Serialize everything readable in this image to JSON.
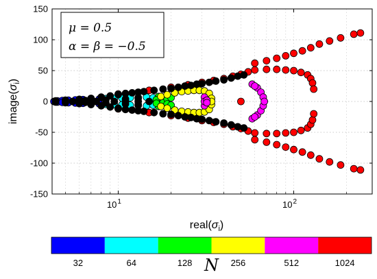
{
  "chart_data": {
    "type": "scatter",
    "title": "",
    "xlabel": "real(σ_i)",
    "ylabel": "image(σ_i)",
    "xscale": "log",
    "xlim": [
      4.2,
      280
    ],
    "ylim": [
      -150,
      150
    ],
    "x_ticks": [
      {
        "value": 10,
        "label": "10",
        "sup": "1"
      },
      {
        "value": 100,
        "label": "10",
        "sup": "2"
      }
    ],
    "y_ticks": [
      -150,
      -100,
      -50,
      0,
      50,
      100,
      150
    ],
    "grid": true,
    "legend_box": {
      "line1": "μ = 0.5",
      "line2": "α = β = −0.5",
      "placement": "top-left"
    },
    "colorbar": {
      "title": "N",
      "entries": [
        {
          "label": "32",
          "color": "#0000ff"
        },
        {
          "label": "64",
          "color": "#00ffff"
        },
        {
          "label": "128",
          "color": "#00ff00"
        },
        {
          "label": "256",
          "color": "#ffff00"
        },
        {
          "label": "512",
          "color": "#ff00ff"
        },
        {
          "label": "1024",
          "color": "#ff0000"
        }
      ]
    },
    "series": [
      {
        "name": "32",
        "color": "#0000ff",
        "points": [
          [
            4.3,
            0
          ],
          [
            4.5,
            1
          ],
          [
            4.5,
            -1
          ],
          [
            4.8,
            1.5
          ],
          [
            4.8,
            -1.5
          ],
          [
            5.2,
            2
          ],
          [
            5.2,
            -2
          ],
          [
            5.7,
            2.5
          ],
          [
            5.7,
            -2.5
          ],
          [
            6.3,
            3
          ],
          [
            6.3,
            -3
          ],
          [
            7.0,
            3.5
          ],
          [
            7.0,
            -3.5
          ],
          [
            7.8,
            4
          ],
          [
            7.8,
            -4
          ]
        ]
      },
      {
        "name": "64",
        "color": "#00ffff",
        "points": [
          [
            8.5,
            4.5
          ],
          [
            8.5,
            -4.5
          ],
          [
            9.5,
            5
          ],
          [
            9.5,
            -5
          ],
          [
            10.5,
            5.5
          ],
          [
            10.5,
            -5.5
          ],
          [
            11.7,
            6
          ],
          [
            11.7,
            -6
          ],
          [
            13.0,
            6.5
          ],
          [
            13.0,
            -6.5
          ],
          [
            14.5,
            7
          ],
          [
            14.5,
            -7
          ],
          [
            15.8,
            6
          ],
          [
            15.8,
            -6
          ]
        ]
      },
      {
        "name": "128",
        "color": "#00ff00",
        "points": [
          [
            16.5,
            0
          ],
          [
            17.0,
            8
          ],
          [
            17.0,
            -8
          ],
          [
            18.0,
            2
          ],
          [
            18.0,
            -2
          ],
          [
            19.0,
            4
          ],
          [
            19.0,
            -4
          ],
          [
            20.0,
            6
          ],
          [
            20.0,
            -6
          ],
          [
            16.5,
            3
          ],
          [
            16.5,
            -3
          ]
        ]
      },
      {
        "name": "256",
        "color": "#ffff00",
        "points": [
          [
            17.5,
            8
          ],
          [
            17.5,
            -8
          ],
          [
            19,
            11
          ],
          [
            19,
            -11
          ],
          [
            21,
            14
          ],
          [
            21,
            -14
          ],
          [
            23,
            16
          ],
          [
            23,
            -16
          ],
          [
            25,
            17
          ],
          [
            25,
            -17
          ],
          [
            27,
            18
          ],
          [
            27,
            -18
          ],
          [
            29,
            18
          ],
          [
            29,
            -18
          ],
          [
            31,
            17
          ],
          [
            31,
            -17
          ],
          [
            33,
            13
          ],
          [
            33,
            -13
          ],
          [
            34,
            5
          ],
          [
            34,
            -5
          ],
          [
            34,
            0
          ]
        ]
      },
      {
        "name": "512",
        "color": "#ff00ff",
        "points": [
          [
            31,
            7
          ],
          [
            31,
            -7
          ],
          [
            31,
            0
          ],
          [
            32,
            2
          ],
          [
            32,
            -2
          ],
          [
            58,
            28
          ],
          [
            58,
            -28
          ],
          [
            62,
            22
          ],
          [
            62,
            -22
          ],
          [
            65,
            15
          ],
          [
            65,
            -15
          ],
          [
            67,
            7
          ],
          [
            67,
            -7
          ],
          [
            68,
            0
          ],
          [
            60,
            25
          ],
          [
            60,
            -25
          ]
        ]
      },
      {
        "name": "1024",
        "color": "#ff0000",
        "points": [
          [
            50,
            0
          ],
          [
            10,
            12
          ],
          [
            10,
            -12
          ],
          [
            15,
            18
          ],
          [
            15,
            -18
          ],
          [
            20,
            23
          ],
          [
            20,
            -23
          ],
          [
            25,
            27
          ],
          [
            25,
            -27
          ],
          [
            30,
            31
          ],
          [
            30,
            -31
          ],
          [
            35,
            34
          ],
          [
            35,
            -34
          ],
          [
            40,
            37
          ],
          [
            40,
            -37
          ],
          [
            45,
            41
          ],
          [
            45,
            -41
          ],
          [
            50,
            44
          ],
          [
            50,
            -44
          ],
          [
            55,
            48
          ],
          [
            55,
            -48
          ],
          [
            60,
            51
          ],
          [
            60,
            -51
          ],
          [
            70,
            52
          ],
          [
            70,
            -52
          ],
          [
            80,
            52
          ],
          [
            80,
            -52
          ],
          [
            90,
            51
          ],
          [
            90,
            -51
          ],
          [
            100,
            50
          ],
          [
            100,
            -50
          ],
          [
            110,
            47
          ],
          [
            110,
            -47
          ],
          [
            120,
            43
          ],
          [
            120,
            -43
          ],
          [
            125,
            37
          ],
          [
            125,
            -37
          ],
          [
            128,
            30
          ],
          [
            128,
            -30
          ],
          [
            130,
            20
          ],
          [
            130,
            -20
          ],
          [
            60,
            62
          ],
          [
            60,
            -62
          ],
          [
            70,
            66
          ],
          [
            70,
            -66
          ],
          [
            80,
            70
          ],
          [
            80,
            -70
          ],
          [
            90,
            74
          ],
          [
            90,
            -74
          ],
          [
            100,
            78
          ],
          [
            100,
            -78
          ],
          [
            112,
            82
          ],
          [
            112,
            -82
          ],
          [
            125,
            87
          ],
          [
            125,
            -87
          ],
          [
            140,
            93
          ],
          [
            140,
            -93
          ],
          [
            160,
            98
          ],
          [
            160,
            -98
          ],
          [
            185,
            103
          ],
          [
            185,
            -103
          ],
          [
            220,
            109
          ],
          [
            220,
            -109
          ],
          [
            240,
            111
          ],
          [
            240,
            -111
          ]
        ]
      },
      {
        "name": "",
        "color": "#000000",
        "points": [
          [
            4.4,
            1
          ],
          [
            4.4,
            -1
          ],
          [
            5,
            2
          ],
          [
            5,
            -2
          ],
          [
            6,
            3.5
          ],
          [
            6,
            -3.5
          ],
          [
            7,
            5
          ],
          [
            7,
            -5
          ],
          [
            8,
            7
          ],
          [
            8,
            -7
          ],
          [
            9,
            9
          ],
          [
            9,
            -9
          ],
          [
            10,
            11
          ],
          [
            10,
            -11
          ],
          [
            11,
            13
          ],
          [
            11,
            -13
          ],
          [
            12,
            14
          ],
          [
            12,
            -14
          ],
          [
            13,
            15
          ],
          [
            13,
            -15
          ],
          [
            14,
            16
          ],
          [
            14,
            -16
          ],
          [
            16,
            18
          ],
          [
            16,
            -18
          ],
          [
            18,
            20
          ],
          [
            18,
            -20
          ],
          [
            20,
            21
          ],
          [
            20,
            -21
          ],
          [
            22,
            23
          ],
          [
            22,
            -23
          ],
          [
            24,
            25
          ],
          [
            24,
            -25
          ],
          [
            26,
            26
          ],
          [
            26,
            -26
          ],
          [
            28,
            28
          ],
          [
            28,
            -28
          ],
          [
            30,
            29
          ],
          [
            30,
            -29
          ],
          [
            33,
            31
          ],
          [
            33,
            -31
          ],
          [
            36,
            33
          ],
          [
            36,
            -33
          ],
          [
            40,
            35
          ],
          [
            40,
            -35
          ],
          [
            44,
            38
          ],
          [
            44,
            -38
          ],
          [
            48,
            41
          ],
          [
            48,
            -41
          ],
          [
            52,
            43
          ],
          [
            52,
            -43
          ],
          [
            5.5,
            0
          ],
          [
            7.5,
            0
          ],
          [
            9.5,
            0
          ],
          [
            11,
            0
          ],
          [
            13,
            0
          ],
          [
            15,
            0
          ],
          [
            6.5,
            1.5
          ],
          [
            6.5,
            -1.5
          ],
          [
            8.5,
            2.5
          ],
          [
            8.5,
            -2.5
          ],
          [
            11,
            4
          ],
          [
            11,
            -4
          ],
          [
            13,
            5
          ],
          [
            13,
            -5
          ]
        ]
      }
    ]
  }
}
